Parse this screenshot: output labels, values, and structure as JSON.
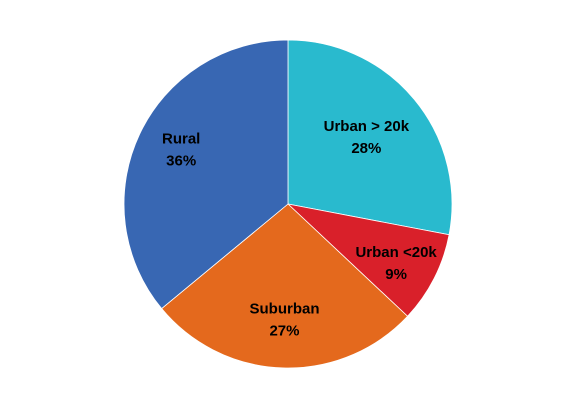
{
  "chart_data": {
    "type": "pie",
    "start_angle_deg": 0,
    "direction": "clockwise",
    "slices": [
      {
        "name": "Urban > 20k",
        "value": 28,
        "label_pct": "28%",
        "color": "#29BACE"
      },
      {
        "name": "Urban <20k",
        "value": 9,
        "label_pct": "9%",
        "color": "#D9202A"
      },
      {
        "name": "Suburban",
        "value": 27,
        "label_pct": "27%",
        "color": "#E4691D"
      },
      {
        "name": "Rural",
        "value": 36,
        "label_pct": "36%",
        "color": "#3867B3"
      }
    ]
  }
}
